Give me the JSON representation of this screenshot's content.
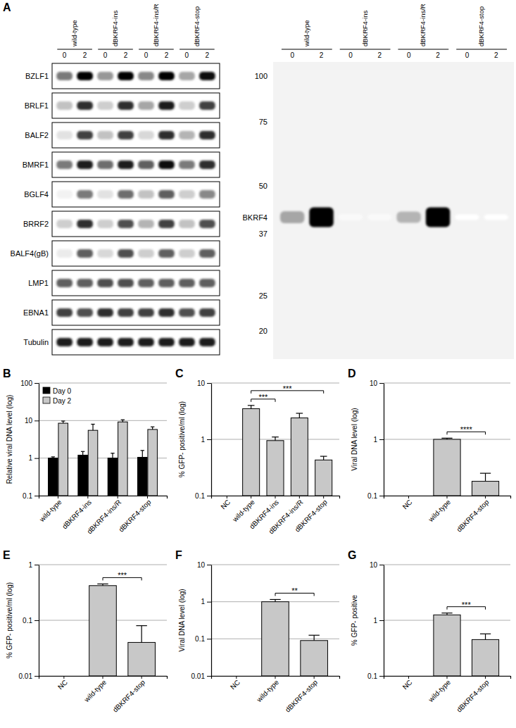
{
  "blots": {
    "panel": "A",
    "groups": [
      "wild-type",
      "dBKRF4-ins",
      "dBKRF4-ins/R",
      "dBKRF4-stop"
    ],
    "times": [
      "0",
      "2"
    ],
    "left": {
      "rows": [
        {
          "label": "BZLF1",
          "bands": [
            0.6,
            1,
            0.5,
            1,
            0.55,
            1,
            0.45,
            0.95
          ]
        },
        {
          "label": "BRLF1",
          "bands": [
            0.35,
            0.85,
            0.3,
            0.85,
            0.45,
            0.9,
            0.3,
            0.8
          ]
        },
        {
          "label": "BALF2",
          "bands": [
            0.2,
            0.8,
            0.35,
            0.8,
            0.25,
            0.85,
            0.4,
            0.85
          ]
        },
        {
          "label": "BMRF1",
          "bands": [
            0.6,
            0.9,
            0.65,
            0.9,
            0.7,
            0.95,
            0.6,
            0.85
          ]
        },
        {
          "label": "BGLF4",
          "bands": [
            0.1,
            0.6,
            0.2,
            0.65,
            0.35,
            0.7,
            0.3,
            0.55
          ]
        },
        {
          "label": "BRRF2",
          "bands": [
            0.3,
            0.85,
            0.3,
            0.75,
            0.4,
            0.8,
            0.35,
            0.75
          ]
        },
        {
          "label": "BALF4(gB)",
          "bands": [
            0.15,
            0.7,
            0.25,
            0.75,
            0.3,
            0.7,
            0.3,
            0.7
          ]
        },
        {
          "label": "LMP1",
          "bands": [
            0.7,
            0.7,
            0.75,
            0.75,
            0.7,
            0.7,
            0.7,
            0.7
          ]
        },
        {
          "label": "EBNA1",
          "bands": [
            0.8,
            0.75,
            0.85,
            0.8,
            0.8,
            0.85,
            0.75,
            0.8
          ]
        },
        {
          "label": "Tubulin",
          "bands": [
            0.9,
            0.9,
            0.9,
            0.9,
            0.9,
            0.9,
            0.9,
            0.9
          ]
        }
      ]
    },
    "right": {
      "markers": [
        100,
        75,
        50,
        37,
        25,
        20
      ],
      "band_label": "BKRF4",
      "bkrf4_kda": 41,
      "bands": [
        0.45,
        1,
        0.05,
        0.05,
        0.4,
        1,
        0,
        0
      ]
    }
  },
  "chart_data": [
    {
      "type": "bar",
      "panel": "B",
      "y_label": "Relative viral DNA level (log)",
      "categories": [
        "wild-type",
        "dBKRF4-ins",
        "dBKRF4-ins/R",
        "dBKRF4-stop"
      ],
      "series": [
        {
          "name": "Day 0",
          "color": "#000000",
          "values": [
            1.0,
            1.2,
            1.0,
            1.05
          ],
          "errors": [
            0.08,
            0.3,
            0.35,
            0.55
          ]
        },
        {
          "name": "Day 2",
          "color": "#c8c8c8",
          "values": [
            8.5,
            5.5,
            9.2,
            5.8
          ],
          "errors": [
            1.2,
            2.5,
            1.3,
            1.0
          ]
        }
      ],
      "log": "y",
      "ylim": [
        0.1,
        100
      ],
      "yticks": [
        0.1,
        1,
        10,
        100
      ],
      "grid": true,
      "legend": "top-left"
    },
    {
      "type": "bar",
      "panel": "C",
      "y_label": "% GFP- positive/ml (log)",
      "categories": [
        "NC",
        "wild-type",
        "dBKRF4-ins",
        "dBKRF4-ins/R",
        "dBKRF4-stop"
      ],
      "values": [
        null,
        3.5,
        0.95,
        2.4,
        0.43
      ],
      "errors": [
        null,
        0.5,
        0.15,
        0.5,
        0.07
      ],
      "color": "#c8c8c8",
      "log": "y",
      "ylim": [
        0.1,
        10
      ],
      "yticks": [
        0.1,
        1,
        10
      ],
      "grid": true,
      "annotations": [
        {
          "text": "***",
          "between": [
            "wild-type",
            "dBKRF4-ins"
          ]
        },
        {
          "text": "***",
          "between": [
            "wild-type",
            "dBKRF4-stop"
          ]
        }
      ]
    },
    {
      "type": "bar",
      "panel": "D",
      "y_label": "Viral DNA level (log)",
      "categories": [
        "NC",
        "wild-type",
        "dBKRF4-stop"
      ],
      "values": [
        null,
        1.0,
        0.18
      ],
      "errors": [
        null,
        0.05,
        0.07
      ],
      "color": "#c8c8c8",
      "log": "y",
      "ylim": [
        0.1,
        10
      ],
      "yticks": [
        0.1,
        1,
        10
      ],
      "grid": true,
      "annotations": [
        {
          "text": "****",
          "between": [
            "wild-type",
            "dBKRF4-stop"
          ]
        }
      ]
    },
    {
      "type": "bar",
      "panel": "E",
      "y_label": "% GFP- positive/ml (log)",
      "categories": [
        "NC",
        "wild-type",
        "dBKRF4-stop"
      ],
      "values": [
        null,
        0.42,
        0.04
      ],
      "errors": [
        null,
        0.03,
        0.04
      ],
      "color": "#c8c8c8",
      "log": "y",
      "ylim": [
        0.01,
        1
      ],
      "yticks": [
        0.01,
        0.1,
        1
      ],
      "grid": true,
      "annotations": [
        {
          "text": "***",
          "between": [
            "wild-type",
            "dBKRF4-stop"
          ]
        }
      ]
    },
    {
      "type": "bar",
      "panel": "F",
      "y_label": "Viral DNA level (log)",
      "categories": [
        "NC",
        "wild-type",
        "dBKRF4-stop"
      ],
      "values": [
        null,
        1.0,
        0.09
      ],
      "errors": [
        null,
        0.15,
        0.035
      ],
      "color": "#c8c8c8",
      "log": "y",
      "ylim": [
        0.01,
        10
      ],
      "yticks": [
        0.01,
        0.1,
        1,
        10
      ],
      "grid": true,
      "annotations": [
        {
          "text": "**",
          "between": [
            "wild-type",
            "dBKRF4-stop"
          ]
        }
      ]
    },
    {
      "type": "bar",
      "panel": "G",
      "y_label": "% GFP- positive",
      "categories": [
        "NC",
        "wild-type",
        "dBKRF4-stop"
      ],
      "values": [
        null,
        1.25,
        0.45
      ],
      "errors": [
        null,
        0.1,
        0.12
      ],
      "color": "#c8c8c8",
      "log": "y",
      "ylim": [
        0.1,
        10
      ],
      "yticks": [
        0.1,
        1,
        10
      ],
      "grid": true,
      "annotations": [
        {
          "text": "***",
          "between": [
            "wild-type",
            "dBKRF4-stop"
          ]
        }
      ]
    }
  ]
}
